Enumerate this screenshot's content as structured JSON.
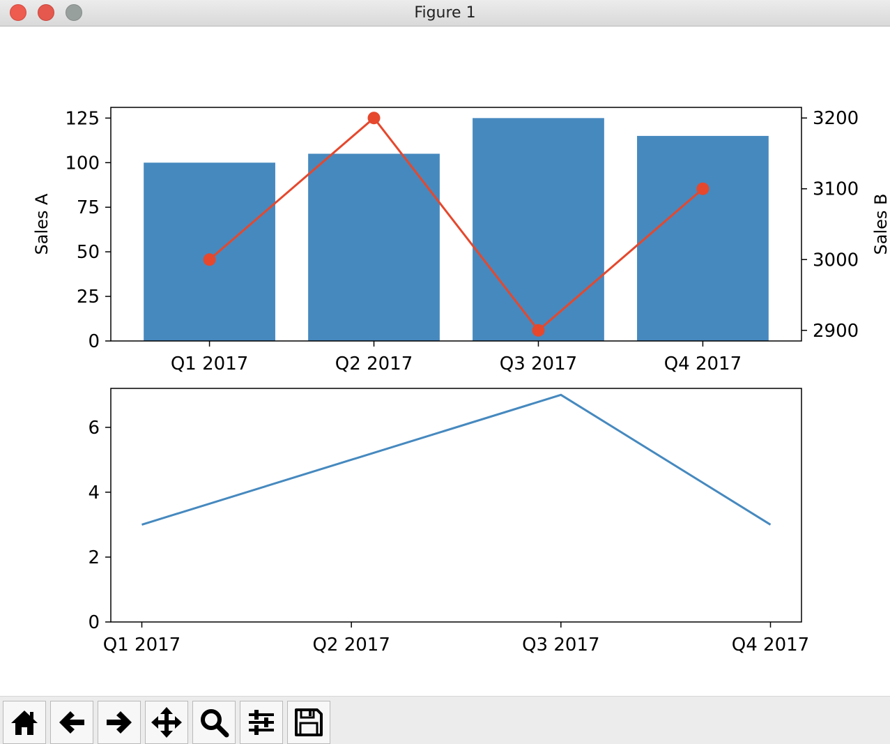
{
  "window": {
    "title": "Figure 1"
  },
  "toolbar": {
    "buttons": [
      {
        "name": "home",
        "icon": "home-icon"
      },
      {
        "name": "back",
        "icon": "arrow-left-icon"
      },
      {
        "name": "forward",
        "icon": "arrow-right-icon"
      },
      {
        "name": "pan",
        "icon": "move-icon"
      },
      {
        "name": "zoom",
        "icon": "magnifier-icon"
      },
      {
        "name": "configure-subplots",
        "icon": "sliders-icon"
      },
      {
        "name": "save",
        "icon": "floppy-disk-icon"
      }
    ]
  },
  "colors": {
    "bar": "#4689bf",
    "line_b": "#e5482d",
    "line_bottom": "#4689bf"
  },
  "chart_data": [
    {
      "type": "bar",
      "categories": [
        "Q1 2017",
        "Q2 2017",
        "Q3 2017",
        "Q4 2017"
      ],
      "values": [
        100,
        105,
        125,
        115
      ],
      "ylabel": "Sales A",
      "ylim": [
        0,
        131
      ],
      "yticks": [
        0,
        25,
        50,
        75,
        100,
        125
      ],
      "secondary": {
        "type": "line",
        "marker": "circle",
        "values": [
          3000,
          3200,
          2900,
          3100
        ],
        "ylabel": "Sales B",
        "ylim": [
          2885,
          3215
        ],
        "yticks": [
          2900,
          3000,
          3100,
          3200
        ]
      }
    },
    {
      "type": "line",
      "categories": [
        "Q1 2017",
        "Q2 2017",
        "Q3 2017",
        "Q4 2017"
      ],
      "values": [
        3,
        5,
        7,
        3
      ],
      "ylim": [
        0,
        7.2
      ],
      "yticks": [
        0,
        2,
        4,
        6
      ]
    }
  ]
}
